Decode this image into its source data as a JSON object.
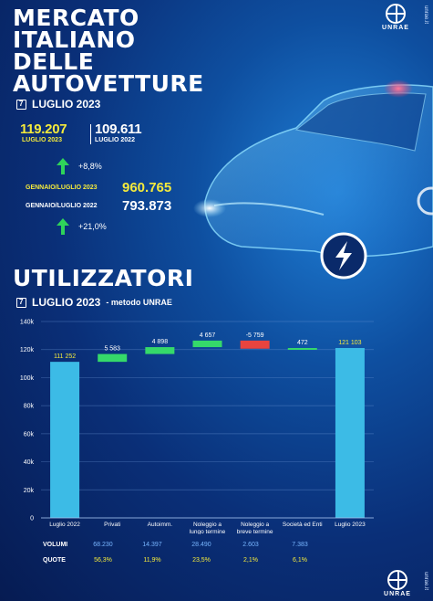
{
  "header": {
    "title_lines": [
      "MERCATO",
      "ITALIANO",
      "DELLE",
      "AUTOVETTURE"
    ],
    "month": "LUGLIO 2023",
    "logo_text": "UNRAE",
    "site": "unrae.it"
  },
  "kpis": {
    "current_value": "119.207",
    "current_label": "LUGLIO 2023",
    "previous_value": "109.611",
    "previous_label": "LUGLIO 2022",
    "monthly_growth": "+8,8%",
    "ytd_current_label": "GENNAIO/LUGLIO 2023",
    "ytd_current_value": "960.765",
    "ytd_previous_label": "GENNAIO/LUGLIO 2022",
    "ytd_previous_value": "793.873",
    "ytd_growth": "+21,0%"
  },
  "section": {
    "title": "UTILIZZATORI",
    "month": "LUGLIO 2023",
    "method": "- metodo UNRAE"
  },
  "colors": {
    "bar_total": "#3cbbe6",
    "bar_increase": "#35d96a",
    "bar_decrease": "#e8443f",
    "accent_yellow": "#f4ea3c",
    "growth_green": "#2fd35a",
    "volume_blue": "#78b6ff"
  },
  "chart_data": {
    "type": "bar",
    "subtype": "waterfall",
    "categories": [
      "Luglio 2022",
      "Privati",
      "Autoimm.",
      "Noleggio a lungo termine",
      "Noleggio a breve termine",
      "Società ed Enti",
      "Luglio 2023"
    ],
    "category_lines": [
      [
        "Luglio 2022"
      ],
      [
        "Privati"
      ],
      [
        "Autoimm."
      ],
      [
        "Noleggio a",
        "lungo termine"
      ],
      [
        "Noleggio a",
        "breve termine"
      ],
      [
        "Società ed Enti"
      ],
      [
        "Luglio 2023"
      ]
    ],
    "values": [
      111252,
      5583,
      4898,
      4657,
      -5759,
      472,
      121103
    ],
    "kinds": [
      "total",
      "delta",
      "delta",
      "delta",
      "delta",
      "delta",
      "total"
    ],
    "data_labels": [
      "111 252",
      "5 583",
      "4 898",
      "4 657",
      "-5 759",
      "472",
      "121 103"
    ],
    "ylim": [
      0,
      140000
    ],
    "yticks": [
      0,
      20000,
      40000,
      60000,
      80000,
      100000,
      120000,
      140000
    ],
    "ytick_labels": [
      "0",
      "20k",
      "40k",
      "60k",
      "80k",
      "100k",
      "120k",
      "140k"
    ],
    "grid": true,
    "legend": "none"
  },
  "table": {
    "volumes_label": "VOLUMI",
    "volumes": [
      "68.230",
      "14.397",
      "28.490",
      "2.603",
      "7.383"
    ],
    "shares_label": "QUOTE",
    "shares": [
      "56,3%",
      "11,9%",
      "23,5%",
      "2,1%",
      "6,1%"
    ]
  }
}
